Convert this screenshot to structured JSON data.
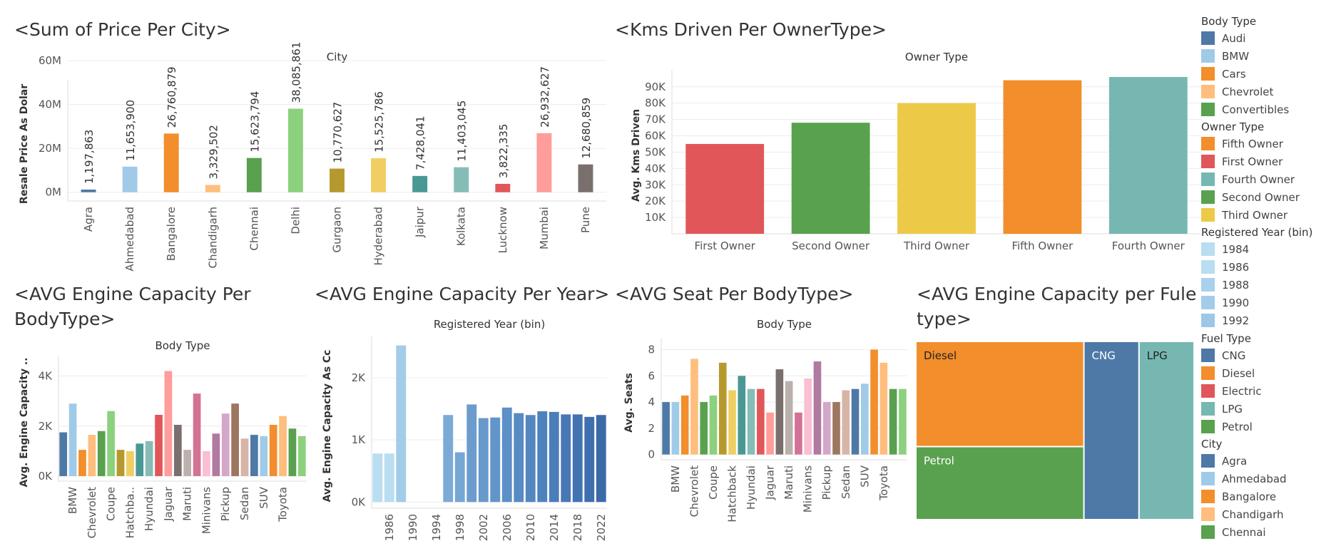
{
  "titles": {
    "price_city": "<Sum of Price Per City>",
    "kms_owner": "<Kms Driven Per OwnerType>",
    "engine_body": "<AVG Engine Capacity Per\nBodyType>",
    "engine_year": "<AVG Engine Capacity Per Year>",
    "seat_body": "<AVG Seat Per BodyType>",
    "engine_fuel": "<AVG Engine Capacity per Fule\ntype>"
  },
  "chart_data": [
    {
      "id": "price_city",
      "type": "bar",
      "header": "City",
      "ylabel": "Resale Price As Dolar",
      "ylim": [
        -4000000,
        48000000
      ],
      "yticks": [
        0,
        20000000,
        40000000,
        60000000
      ],
      "ytick_labels": [
        "0M",
        "20M",
        "40M",
        "60M"
      ],
      "categories": [
        "Agra",
        "Ahmedabad",
        "Bangalore",
        "Chandigarh",
        "Chennai",
        "Delhi",
        "Gurgaon",
        "Hyderabad",
        "Jaipur",
        "Kolkata",
        "Lucknow",
        "Mumbai",
        "Pune"
      ],
      "values": [
        1197863,
        11653900,
        26760879,
        3329502,
        15623794,
        38085861,
        10770627,
        15525786,
        7428041,
        11403045,
        3822335,
        26932627,
        12680859
      ],
      "value_labels": [
        "1,197,863",
        "11,653,900",
        "26,760,879",
        "3,329,502",
        "15,623,794",
        "38,085,861",
        "10,770,627",
        "15,525,786",
        "7,428,041",
        "11,403,045",
        "3,822,335",
        "26,932,627",
        "12,680,859"
      ],
      "colors": [
        "#4e79a7",
        "#a0cbe8",
        "#f28e2b",
        "#ffbe7d",
        "#59a14f",
        "#8cd17d",
        "#b6992d",
        "#f1ce63",
        "#499894",
        "#86bcb6",
        "#e15759",
        "#ff9d9a",
        "#79706e"
      ]
    },
    {
      "id": "kms_owner",
      "type": "bar",
      "header": "Owner Type",
      "ylabel": "Avg. Kms Driven",
      "ylim": [
        0,
        96000
      ],
      "yticks": [
        10000,
        20000,
        30000,
        40000,
        50000,
        60000,
        70000,
        80000,
        90000
      ],
      "ytick_labels": [
        "10K",
        "20K",
        "30K",
        "40K",
        "50K",
        "60K",
        "70K",
        "80K",
        "90K"
      ],
      "categories": [
        "First Owner",
        "Second Owner",
        "Third Owner",
        "Fifth Owner",
        "Fourth Owner"
      ],
      "values": [
        55000,
        68000,
        80000,
        94000,
        96000
      ],
      "colors": [
        "#e15759",
        "#59a14f",
        "#edc948",
        "#f28e2b",
        "#76b7b2"
      ]
    },
    {
      "id": "engine_body",
      "type": "bar",
      "header": "Body Type",
      "ylabel": "Avg. Engine Capacity ..",
      "ylim": [
        -200,
        4500
      ],
      "yticks": [
        0,
        2000,
        4000
      ],
      "ytick_labels": [
        "0K",
        "2K",
        "4K"
      ],
      "categories": [
        "",
        "BMW",
        "",
        "Chevrolet",
        "",
        "Coupe",
        "",
        "Hatchba..",
        "",
        "Hyundai",
        "",
        "Jaguar",
        "",
        "Maruti",
        "",
        "Minivans",
        "",
        "Pickup",
        "",
        "Sedan",
        "",
        "SUV",
        "",
        "Toyota",
        "",
        ""
      ],
      "values": [
        1750,
        2900,
        1050,
        1650,
        1800,
        2600,
        1050,
        1000,
        1300,
        1400,
        2450,
        4200,
        2050,
        1050,
        3300,
        1000,
        1700,
        2500,
        2900,
        1500,
        1650,
        1600,
        2050,
        2400,
        1900,
        1600
      ],
      "colors": [
        "#4e79a7",
        "#a0cbe8",
        "#f28e2b",
        "#ffbe7d",
        "#59a14f",
        "#8cd17d",
        "#b6992d",
        "#f1ce63",
        "#499894",
        "#86bcb6",
        "#e15759",
        "#ff9d9a",
        "#79706e",
        "#bab0ac",
        "#d37295",
        "#fabfd2",
        "#b07aa1",
        "#d4a6c8",
        "#9d7660",
        "#d7b5a6",
        "#4e79a7",
        "#a0cbe8",
        "#f28e2b",
        "#ffbe7d",
        "#59a14f",
        "#8cd17d"
      ]
    },
    {
      "id": "engine_year",
      "type": "bar",
      "header": "Registered Year (bin)",
      "ylabel": "Avg. Engine Capacity As Cc",
      "ylim": [
        -100,
        2550
      ],
      "yticks": [
        0,
        1000,
        2000
      ],
      "ytick_labels": [
        "0K",
        "1K",
        "2K"
      ],
      "categories": [
        "1984",
        "1986",
        "1988",
        "1990",
        "1992",
        "1994",
        "1996",
        "1998",
        "2000",
        "2002",
        "2004",
        "2006",
        "2008",
        "2010",
        "2012",
        "2014",
        "2016",
        "2018",
        "2020",
        "2022"
      ],
      "tick_labels": [
        "",
        "1986",
        "",
        "1990",
        "",
        "1994",
        "",
        "1998",
        "",
        "2002",
        "",
        "2006",
        "",
        "2010",
        "",
        "2014",
        "",
        "2018",
        "",
        "2022"
      ],
      "values": [
        780,
        780,
        2520,
        null,
        null,
        null,
        1400,
        800,
        1570,
        1350,
        1360,
        1520,
        1430,
        1400,
        1460,
        1450,
        1410,
        1410,
        1370,
        1400
      ],
      "colors": [
        "#b9ddf1",
        "#b9ddf1",
        "#a3cce9",
        null,
        null,
        null,
        "#7aaad5",
        "#76a7d3",
        "#6b9ccd",
        "#6799cc",
        "#6295c9",
        "#5c90c6",
        "#588bc3",
        "#5487c0",
        "#4f82bd",
        "#4b7db9",
        "#4778b5",
        "#4373b1",
        "#3f6fad",
        "#3b6aa8"
      ]
    },
    {
      "id": "seat_body",
      "type": "bar",
      "header": "Body Type",
      "ylabel": "Avg. Seats",
      "ylim": [
        -0.4,
        8.3
      ],
      "yticks": [
        0,
        2,
        4,
        6,
        8
      ],
      "ytick_labels": [
        "0",
        "2",
        "4",
        "6",
        "8"
      ],
      "categories": [
        "",
        "BMW",
        "",
        "Chevrolet",
        "",
        "Coupe",
        "",
        "Hatchback",
        "",
        "Hyundai",
        "",
        "Jaguar",
        "",
        "Maruti",
        "",
        "Minivans",
        "",
        "Pickup",
        "",
        "Sedan",
        "",
        "SUV",
        "",
        "Toyota",
        "",
        ""
      ],
      "values": [
        4.0,
        4.0,
        4.5,
        7.3,
        4.0,
        4.5,
        7.0,
        4.9,
        6.0,
        5.0,
        5.0,
        3.2,
        6.5,
        5.6,
        3.2,
        5.8,
        7.1,
        4.0,
        4.0,
        4.9,
        5.0,
        5.4,
        8.0,
        7.0,
        5.0,
        5.0
      ],
      "colors": [
        "#4e79a7",
        "#a0cbe8",
        "#f28e2b",
        "#ffbe7d",
        "#59a14f",
        "#8cd17d",
        "#b6992d",
        "#f1ce63",
        "#499894",
        "#86bcb6",
        "#e15759",
        "#ff9d9a",
        "#79706e",
        "#bab0ac",
        "#d37295",
        "#fabfd2",
        "#b07aa1",
        "#d4a6c8",
        "#9d7660",
        "#d7b5a6",
        "#4e79a7",
        "#a0cbe8",
        "#f28e2b",
        "#ffbe7d",
        "#59a14f",
        "#8cd17d"
      ]
    },
    {
      "id": "engine_fuel",
      "type": "treemap",
      "cells": [
        {
          "label": "Diesel",
          "value": 1800,
          "color": "#f28e2b"
        },
        {
          "label": "Petrol",
          "value": 1250,
          "color": "#59a14f"
        },
        {
          "label": "CNG",
          "value": 1000,
          "color": "#4e79a7"
        },
        {
          "label": "LPG",
          "value": 1000,
          "color": "#76b7b2"
        }
      ]
    }
  ],
  "legends": [
    {
      "title": "Body Type",
      "items": [
        {
          "label": "Audi",
          "color": "#4e79a7"
        },
        {
          "label": "BMW",
          "color": "#a0cbe8"
        },
        {
          "label": "Cars",
          "color": "#f28e2b"
        },
        {
          "label": "Chevrolet",
          "color": "#ffbe7d"
        },
        {
          "label": "Convertibles",
          "color": "#59a14f"
        }
      ]
    },
    {
      "title": "Owner Type",
      "items": [
        {
          "label": "Fifth Owner",
          "color": "#f28e2b"
        },
        {
          "label": "First Owner",
          "color": "#e15759"
        },
        {
          "label": "Fourth Owner",
          "color": "#76b7b2"
        },
        {
          "label": "Second Owner",
          "color": "#59a14f"
        },
        {
          "label": "Third Owner",
          "color": "#edc948"
        }
      ]
    },
    {
      "title": "Registered Year (bin)",
      "items": [
        {
          "label": "1984",
          "color": "#b9ddf1"
        },
        {
          "label": "1986",
          "color": "#b9ddf1"
        },
        {
          "label": "1988",
          "color": "#a8d1ee"
        },
        {
          "label": "1990",
          "color": "#a3cce9"
        },
        {
          "label": "1992",
          "color": "#9dc7e6"
        }
      ]
    },
    {
      "title": "Fuel Type",
      "items": [
        {
          "label": "CNG",
          "color": "#4e79a7"
        },
        {
          "label": "Diesel",
          "color": "#f28e2b"
        },
        {
          "label": "Electric",
          "color": "#e15759"
        },
        {
          "label": "LPG",
          "color": "#76b7b2"
        },
        {
          "label": "Petrol",
          "color": "#59a14f"
        }
      ]
    },
    {
      "title": "City",
      "items": [
        {
          "label": "Agra",
          "color": "#4e79a7"
        },
        {
          "label": "Ahmedabad",
          "color": "#a0cbe8"
        },
        {
          "label": "Bangalore",
          "color": "#f28e2b"
        },
        {
          "label": "Chandigarh",
          "color": "#ffbe7d"
        },
        {
          "label": "Chennai",
          "color": "#59a14f"
        }
      ]
    }
  ]
}
